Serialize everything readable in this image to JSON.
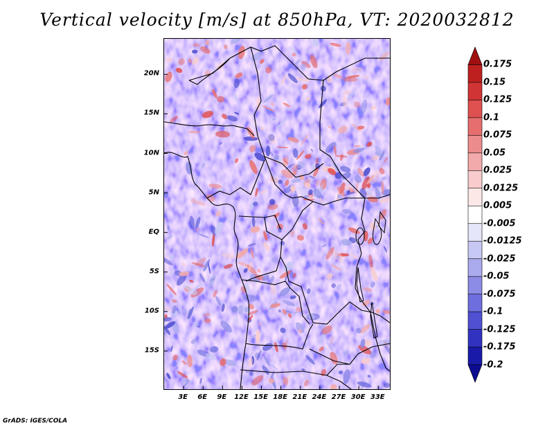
{
  "title": "Vertical velocity [m/s] at 850hPa, VT: 2020032812",
  "footer": "GrADS: IGES/COLA",
  "map": {
    "lon_range": [
      0,
      35
    ],
    "lat_range": [
      -20,
      24.5
    ],
    "lat_labels": [
      "20N",
      "15N",
      "10N",
      "5N",
      "EQ",
      "5S",
      "10S",
      "15S"
    ],
    "lat_values": [
      20,
      15,
      10,
      5,
      0,
      -5,
      -10,
      -15
    ],
    "lon_labels": [
      "3E",
      "6E",
      "9E",
      "12E",
      "15E",
      "18E",
      "21E",
      "24E",
      "27E",
      "30E",
      "33E"
    ],
    "lon_values": [
      3,
      6,
      9,
      12,
      15,
      18,
      21,
      24,
      27,
      30,
      33
    ]
  },
  "colorbar": {
    "labels": [
      "0.175",
      "0.15",
      "0.125",
      "0.1",
      "0.075",
      "0.05",
      "0.025",
      "0.0125",
      "0.005",
      "-0.005",
      "-0.0125",
      "-0.025",
      "-0.05",
      "-0.075",
      "-0.1",
      "-0.125",
      "-0.175",
      "-0.2"
    ],
    "colors": [
      "#a01010",
      "#be2020",
      "#d03434",
      "#df5050",
      "#e66e6e",
      "#ec8c8c",
      "#f2aaaa",
      "#f8cccc",
      "#fde8e8",
      "#ffffff",
      "#e6e6fa",
      "#c8c8f4",
      "#aaaaee",
      "#8c8ce6",
      "#6e6ede",
      "#5050d2",
      "#3232c0",
      "#1a1aa8",
      "#0c0c90"
    ]
  }
}
